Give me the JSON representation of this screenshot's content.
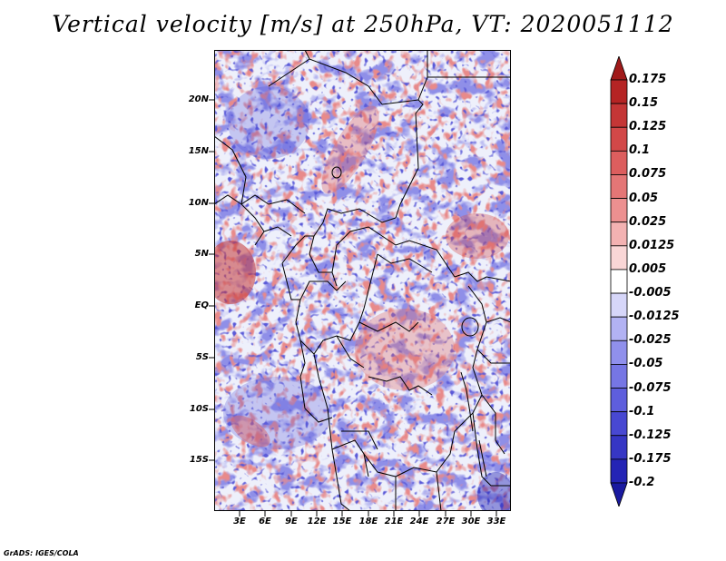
{
  "title": "Vertical velocity [m/s] at 250hPa, VT: 2020051112",
  "lat_labels": [
    "20N",
    "15N",
    "10N",
    "5N",
    "EQ",
    "5S",
    "10S",
    "15S"
  ],
  "lon_labels": [
    "3E",
    "6E",
    "9E",
    "12E",
    "15E",
    "18E",
    "21E",
    "24E",
    "27E",
    "30E",
    "33E"
  ],
  "colorbar": {
    "levels": [
      "0.175",
      "0.15",
      "0.125",
      "0.1",
      "0.075",
      "0.05",
      "0.025",
      "0.0125",
      "0.005",
      "-0.005",
      "-0.0125",
      "-0.025",
      "-0.05",
      "-0.075",
      "-0.1",
      "-0.125",
      "-0.175",
      "-0.2"
    ],
    "colors": [
      "#a01a1a",
      "#b52424",
      "#c43636",
      "#d24848",
      "#dc5e5e",
      "#e47676",
      "#ec9090",
      "#f3b2b2",
      "#f9d6d6",
      "#ffffff",
      "#d6d6f9",
      "#b2b2f3",
      "#9090ec",
      "#7676e4",
      "#5e5edc",
      "#4848d2",
      "#3636c4",
      "#2424b5",
      "#1a1aa0"
    ]
  },
  "credit": "GrADS: IGES/COLA"
}
